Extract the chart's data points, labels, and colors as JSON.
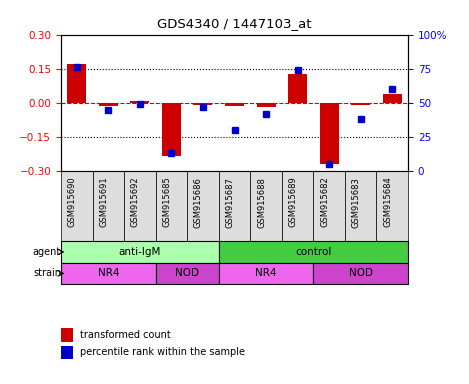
{
  "title": "GDS4340 / 1447103_at",
  "samples": [
    "GSM915690",
    "GSM915691",
    "GSM915692",
    "GSM915685",
    "GSM915686",
    "GSM915687",
    "GSM915688",
    "GSM915689",
    "GSM915682",
    "GSM915683",
    "GSM915684"
  ],
  "transformed_counts": [
    0.17,
    -0.015,
    0.01,
    -0.235,
    -0.01,
    -0.015,
    -0.02,
    0.125,
    -0.27,
    -0.01,
    0.04
  ],
  "percentile_ranks": [
    76,
    45,
    49,
    13,
    47,
    30,
    42,
    74,
    5,
    38,
    60
  ],
  "agent_groups": [
    {
      "label": "anti-IgM",
      "start": 0,
      "end": 5,
      "color": "#AAFFAA"
    },
    {
      "label": "control",
      "start": 5,
      "end": 11,
      "color": "#44CC44"
    }
  ],
  "strain_groups": [
    {
      "label": "NR4",
      "start": 0,
      "end": 3,
      "color": "#EE66EE"
    },
    {
      "label": "NOD",
      "start": 3,
      "end": 5,
      "color": "#CC44CC"
    },
    {
      "label": "NR4",
      "start": 5,
      "end": 8,
      "color": "#EE66EE"
    },
    {
      "label": "NOD",
      "start": 8,
      "end": 11,
      "color": "#CC44CC"
    }
  ],
  "ylim_left": [
    -0.3,
    0.3
  ],
  "ylim_right": [
    0,
    100
  ],
  "yticks_left": [
    -0.3,
    -0.15,
    0,
    0.15,
    0.3
  ],
  "yticks_right": [
    0,
    25,
    50,
    75,
    100
  ],
  "bar_color": "#CC0000",
  "dot_color": "#0000CC",
  "hline_color": "#CC0000",
  "grid_color": "black",
  "background_color": "white",
  "label_bg_color": "#DDDDDD"
}
